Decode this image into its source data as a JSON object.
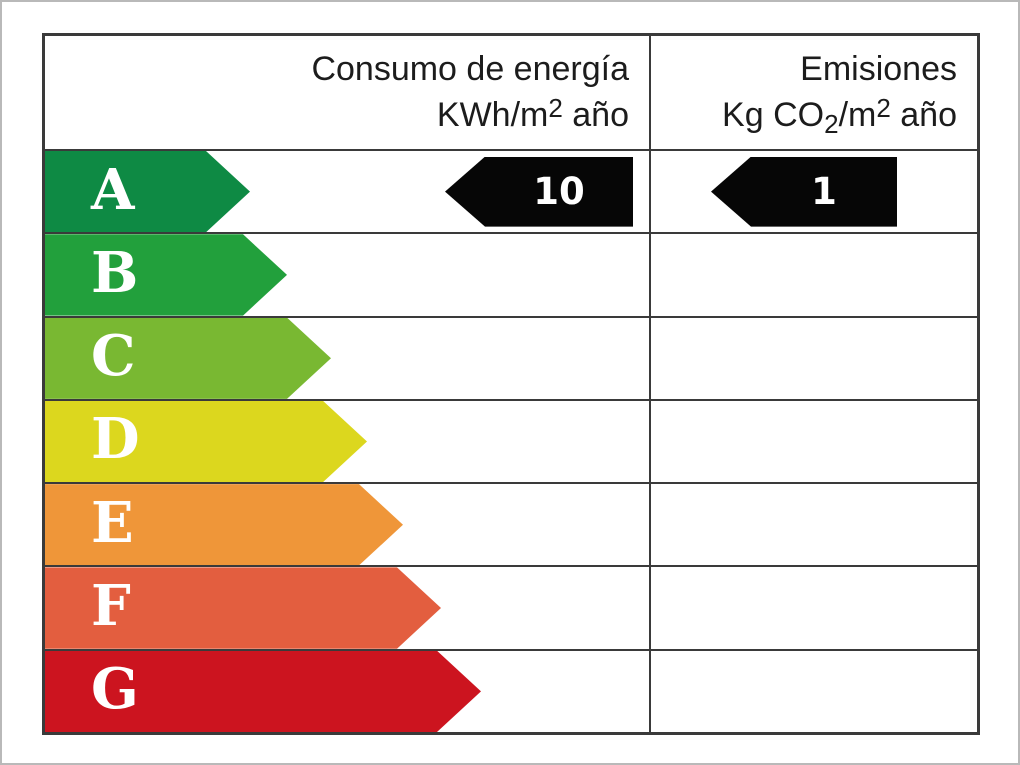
{
  "header": {
    "consumption": {
      "line1": "Consumo de energía",
      "line2_prefix": "KWh/m",
      "line2_sup": "2",
      "line2_suffix": " año"
    },
    "emissions": {
      "line1": "Emisiones",
      "line2_prefix": "Kg CO",
      "line2_sub": "2",
      "line2_mid": "/m",
      "line2_sup": "2",
      "line2_suffix": " año"
    }
  },
  "ratings": [
    {
      "letter": "A",
      "color": "#0e8a44"
    },
    {
      "letter": "B",
      "color": "#22a03c"
    },
    {
      "letter": "C",
      "color": "#79b832"
    },
    {
      "letter": "D",
      "color": "#dcd71e"
    },
    {
      "letter": "E",
      "color": "#ef9639"
    },
    {
      "letter": "F",
      "color": "#e35e3f"
    },
    {
      "letter": "G",
      "color": "#cc141f"
    }
  ],
  "current": {
    "rated_class": "A",
    "consumption_value": "10",
    "emissions_value": "1",
    "marker_color": "#060606"
  },
  "colors": {
    "border": "#3a3a3a",
    "letter_text": "#ffffff",
    "marker_text": "#ffffff"
  },
  "chart_data": {
    "type": "table",
    "columns": [
      "Consumo de energía KWh/m2 año",
      "Emisiones Kg CO2/m2 año"
    ],
    "rating_scale": [
      "A",
      "B",
      "C",
      "D",
      "E",
      "F",
      "G"
    ],
    "scale_colors": [
      "#0e8a44",
      "#22a03c",
      "#79b832",
      "#dcd71e",
      "#ef9639",
      "#e35e3f",
      "#cc141f"
    ],
    "rated_class": "A",
    "consumption_kwh_m2_year": 10,
    "emissions_kg_co2_m2_year": 1,
    "legend_position": "none",
    "grid": "table-borders"
  }
}
